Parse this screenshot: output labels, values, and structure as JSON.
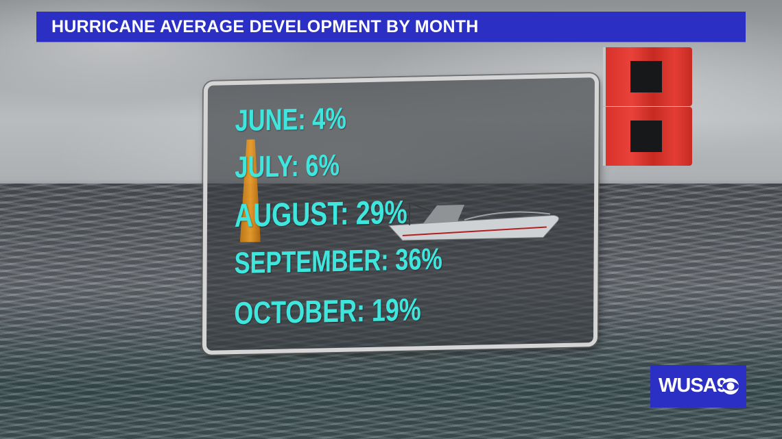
{
  "header": {
    "title": "HURRICANE AVERAGE DEVELOPMENT BY MONTH"
  },
  "stats": [
    {
      "label": "JUNE: 4%"
    },
    {
      "label": "JULY: 6%"
    },
    {
      "label": "AUGUST: 29%"
    },
    {
      "label": "SEPTEMBER: 36%"
    },
    {
      "label": "OCTOBER: 19%"
    }
  ],
  "logo": {
    "text": "WUSA9",
    "icon": "cbs-eye-icon"
  },
  "colors": {
    "title_bar": "#2b2fc4",
    "stat_text": "#3fe6de",
    "flag_red": "#e03a32",
    "flag_square": "#17181a"
  }
}
